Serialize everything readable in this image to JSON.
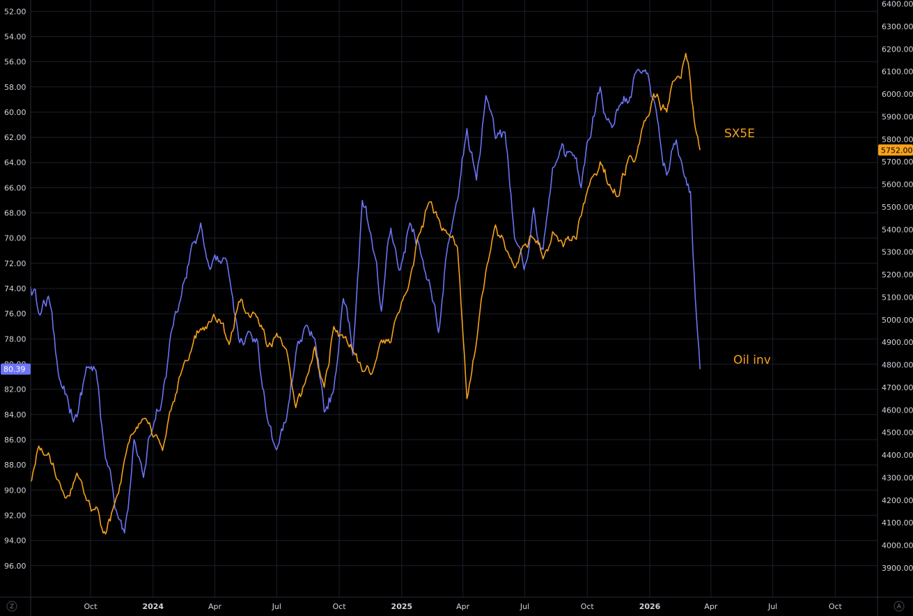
{
  "chart_data": {
    "type": "line",
    "title": "",
    "background": "#000000",
    "grid": true,
    "left_axis": {
      "series": "Oil inv",
      "inverted": true,
      "range": [
        51.1,
        98.5
      ],
      "ticks": [
        "52.00",
        "54.00",
        "56.00",
        "58.00",
        "60.00",
        "62.00",
        "64.00",
        "66.00",
        "68.00",
        "70.00",
        "72.00",
        "74.00",
        "76.00",
        "78.00",
        "80.00",
        "82.00",
        "84.00",
        "86.00",
        "88.00",
        "90.00",
        "92.00",
        "94.00",
        "96.00"
      ],
      "last_value": "80.39"
    },
    "right_axis": {
      "series": "SX5E",
      "range": [
        3770,
        6417
      ],
      "ticks": [
        "3900.00",
        "4000.00",
        "4100.00",
        "4200.00",
        "4300.00",
        "4400.00",
        "4500.00",
        "4600.00",
        "4700.00",
        "4800.00",
        "4900.00",
        "5000.00",
        "5100.00",
        "5200.00",
        "5300.00",
        "5400.00",
        "5500.00",
        "5600.00",
        "5700.00",
        "5800.00",
        "5900.00",
        "6000.00",
        "6100.00",
        "6200.00",
        "6300.00",
        "6400.00"
      ],
      "last_value": "5752.00"
    },
    "x_axis": {
      "ticks": [
        {
          "label": "Oct",
          "date": "2023-10-01",
          "year": false
        },
        {
          "label": "2024",
          "date": "2024-01-01",
          "year": true
        },
        {
          "label": "Apr",
          "date": "2024-04-01",
          "year": false
        },
        {
          "label": "Jul",
          "date": "2024-07-01",
          "year": false
        },
        {
          "label": "Oct",
          "date": "2024-10-01",
          "year": false
        },
        {
          "label": "2025",
          "date": "2025-01-01",
          "year": true
        },
        {
          "label": "Apr",
          "date": "2025-04-01",
          "year": false
        },
        {
          "label": "Jul",
          "date": "2025-07-01",
          "year": false
        },
        {
          "label": "Oct",
          "date": "2025-10-01",
          "year": false
        },
        {
          "label": "2026",
          "date": "2026-01-01",
          "year": true
        },
        {
          "label": "Apr",
          "date": "2026-04-01",
          "year": false
        },
        {
          "label": "Jul",
          "date": "2026-07-01",
          "year": false
        },
        {
          "label": "Oct",
          "date": "2026-10-01",
          "year": false
        }
      ]
    },
    "series": [
      {
        "name": "Oil inv",
        "axis": "left",
        "color": "#6b74f5",
        "points": [
          [
            "2023-07-03",
            73.5
          ],
          [
            "2023-07-17",
            76.0
          ],
          [
            "2023-07-31",
            74.6
          ],
          [
            "2023-08-14",
            80.5
          ],
          [
            "2023-08-28",
            82.6
          ],
          [
            "2023-09-11",
            84.2
          ],
          [
            "2023-09-25",
            80.2
          ],
          [
            "2023-10-09",
            80.5
          ],
          [
            "2023-10-23",
            87.5
          ],
          [
            "2023-11-06",
            91.5
          ],
          [
            "2023-11-20",
            93.4
          ],
          [
            "2023-12-04",
            86.0
          ],
          [
            "2023-12-18",
            89.0
          ],
          [
            "2024-01-01",
            85.0
          ],
          [
            "2024-01-15",
            82.6
          ],
          [
            "2024-01-29",
            77.2
          ],
          [
            "2024-02-12",
            74.5
          ],
          [
            "2024-02-26",
            70.8
          ],
          [
            "2024-03-11",
            68.8
          ],
          [
            "2024-03-25",
            72.5
          ],
          [
            "2024-04-08",
            71.8
          ],
          [
            "2024-04-22",
            73.0
          ],
          [
            "2024-05-06",
            78.0
          ],
          [
            "2024-05-20",
            77.4
          ],
          [
            "2024-06-03",
            78.2
          ],
          [
            "2024-06-17",
            84.3
          ],
          [
            "2024-07-01",
            86.8
          ],
          [
            "2024-07-15",
            84.5
          ],
          [
            "2024-07-29",
            79.2
          ],
          [
            "2024-08-12",
            77.0
          ],
          [
            "2024-08-26",
            78.0
          ],
          [
            "2024-09-09",
            83.8
          ],
          [
            "2024-09-23",
            82.0
          ],
          [
            "2024-10-07",
            74.8
          ],
          [
            "2024-10-21",
            79.3
          ],
          [
            "2024-11-04",
            67.0
          ],
          [
            "2024-11-18",
            70.2
          ],
          [
            "2024-12-02",
            75.8
          ],
          [
            "2024-12-16",
            69.2
          ],
          [
            "2024-12-30",
            72.5
          ],
          [
            "2025-01-13",
            68.8
          ],
          [
            "2025-01-27",
            70.6
          ],
          [
            "2025-02-10",
            73.3
          ],
          [
            "2025-02-24",
            77.5
          ],
          [
            "2025-03-10",
            70.5
          ],
          [
            "2025-03-24",
            67.0
          ],
          [
            "2025-04-07",
            61.3
          ],
          [
            "2025-04-21",
            65.4
          ],
          [
            "2025-05-05",
            58.7
          ],
          [
            "2025-05-19",
            62.1
          ],
          [
            "2025-06-02",
            61.6
          ],
          [
            "2025-06-16",
            70.0
          ],
          [
            "2025-06-30",
            72.5
          ],
          [
            "2025-07-14",
            67.6
          ],
          [
            "2025-07-28",
            70.9
          ],
          [
            "2025-08-11",
            64.4
          ],
          [
            "2025-09-08",
            63.2
          ],
          [
            "2025-09-22",
            66.0
          ],
          [
            "2025-10-06",
            62.0
          ],
          [
            "2025-10-20",
            58.0
          ],
          [
            "2025-11-03",
            60.8
          ],
          [
            "2025-11-17",
            59.5
          ],
          [
            "2025-12-01",
            59.2
          ],
          [
            "2025-12-15",
            56.6
          ],
          [
            "2025-12-29",
            56.9
          ],
          [
            "2026-01-12",
            60.5
          ],
          [
            "2026-01-26",
            65.0
          ],
          [
            "2026-02-09",
            62.2
          ],
          [
            "2026-02-23",
            65.2
          ],
          [
            "2026-03-02",
            66.3
          ],
          [
            "2026-03-09",
            74.8
          ],
          [
            "2026-03-16",
            80.4
          ]
        ]
      },
      {
        "name": "SX5E",
        "axis": "right",
        "color": "#f7a21b",
        "points": [
          [
            "2023-07-03",
            4260
          ],
          [
            "2023-07-17",
            4440
          ],
          [
            "2023-07-31",
            4410
          ],
          [
            "2023-08-14",
            4290
          ],
          [
            "2023-08-28",
            4220
          ],
          [
            "2023-09-11",
            4320
          ],
          [
            "2023-09-25",
            4200
          ],
          [
            "2023-10-09",
            4170
          ],
          [
            "2023-10-23",
            4050
          ],
          [
            "2023-11-06",
            4190
          ],
          [
            "2023-11-20",
            4380
          ],
          [
            "2023-12-04",
            4500
          ],
          [
            "2023-12-18",
            4560
          ],
          [
            "2024-01-01",
            4480
          ],
          [
            "2024-01-15",
            4420
          ],
          [
            "2024-01-29",
            4620
          ],
          [
            "2024-02-12",
            4770
          ],
          [
            "2024-02-26",
            4860
          ],
          [
            "2024-03-11",
            4960
          ],
          [
            "2024-03-25",
            4990
          ],
          [
            "2024-04-08",
            5000
          ],
          [
            "2024-04-22",
            4890
          ],
          [
            "2024-05-06",
            5080
          ],
          [
            "2024-05-20",
            5030
          ],
          [
            "2024-06-03",
            5010
          ],
          [
            "2024-06-17",
            4880
          ],
          [
            "2024-07-01",
            4940
          ],
          [
            "2024-07-15",
            4870
          ],
          [
            "2024-07-29",
            4610
          ],
          [
            "2024-08-12",
            4720
          ],
          [
            "2024-08-26",
            4880
          ],
          [
            "2024-09-09",
            4700
          ],
          [
            "2024-09-23",
            4970
          ],
          [
            "2024-10-07",
            4920
          ],
          [
            "2024-10-21",
            4860
          ],
          [
            "2024-11-04",
            4770
          ],
          [
            "2024-11-18",
            4760
          ],
          [
            "2024-12-02",
            4910
          ],
          [
            "2024-12-16",
            4900
          ],
          [
            "2024-12-30",
            5050
          ],
          [
            "2025-01-13",
            5180
          ],
          [
            "2025-01-27",
            5380
          ],
          [
            "2025-02-10",
            5520
          ],
          [
            "2025-02-24",
            5450
          ],
          [
            "2025-03-10",
            5380
          ],
          [
            "2025-03-24",
            5320
          ],
          [
            "2025-04-07",
            4650
          ],
          [
            "2025-04-21",
            4900
          ],
          [
            "2025-05-05",
            5220
          ],
          [
            "2025-05-19",
            5420
          ],
          [
            "2025-06-02",
            5320
          ],
          [
            "2025-06-16",
            5230
          ],
          [
            "2025-06-30",
            5330
          ],
          [
            "2025-07-14",
            5360
          ],
          [
            "2025-07-28",
            5270
          ],
          [
            "2025-08-11",
            5390
          ],
          [
            "2025-09-08",
            5350
          ],
          [
            "2025-09-22",
            5460
          ],
          [
            "2025-10-06",
            5620
          ],
          [
            "2025-10-20",
            5700
          ],
          [
            "2025-11-03",
            5600
          ],
          [
            "2025-11-17",
            5550
          ],
          [
            "2025-12-01",
            5720
          ],
          [
            "2025-12-15",
            5770
          ],
          [
            "2025-12-29",
            5900
          ],
          [
            "2026-01-12",
            6000
          ],
          [
            "2026-01-26",
            5920
          ],
          [
            "2026-02-09",
            6070
          ],
          [
            "2026-02-23",
            6180
          ],
          [
            "2026-03-02",
            6050
          ],
          [
            "2026-03-09",
            5850
          ],
          [
            "2026-03-16",
            5752
          ]
        ]
      }
    ],
    "labels": [
      {
        "text": "SX5E",
        "series": "SX5E"
      },
      {
        "text": "Oil inv",
        "series": "Oil inv"
      }
    ],
    "corners": {
      "left": "Z",
      "right": "A"
    }
  }
}
